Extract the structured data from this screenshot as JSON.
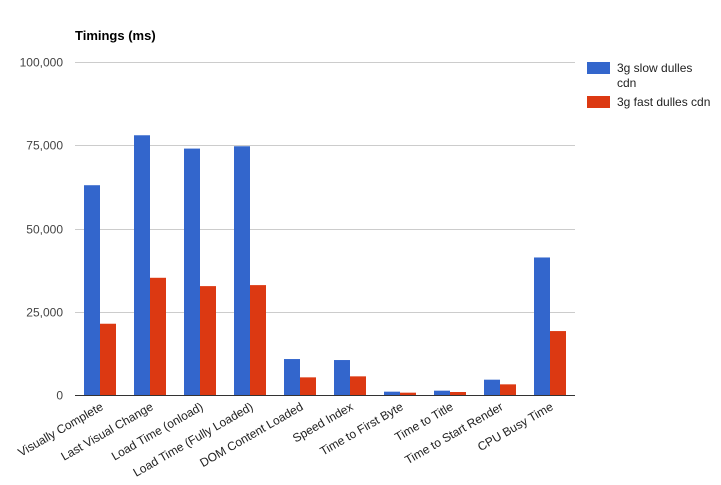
{
  "chart_data": {
    "type": "bar",
    "title": "Timings (ms)",
    "xlabel": "",
    "ylabel": "",
    "ylim": [
      0,
      100000
    ],
    "yticks": [
      0,
      25000,
      50000,
      75000,
      100000
    ],
    "ytick_labels": [
      "0",
      "25,000",
      "50,000",
      "75,000",
      "100,000"
    ],
    "grid": true,
    "legend_position": "right",
    "categories": [
      "Visually Complete",
      "Last Visual Change",
      "Load Time (onload)",
      "Load Time (Fully Loaded)",
      "DOM Content Loaded",
      "Speed Index",
      "Time to First Byte",
      "Time to Title",
      "Time to Start Render",
      "CPU Busy Time"
    ],
    "series": [
      {
        "name": "3g slow dulles cdn",
        "legend_lines": [
          "3g slow dulles",
          "cdn"
        ],
        "color": "#3366cc",
        "values": [
          63000,
          78000,
          74000,
          74700,
          10800,
          10500,
          1000,
          1300,
          4600,
          41300
        ]
      },
      {
        "name": "3g fast dulles cdn",
        "legend_lines": [
          "3g fast dulles cdn"
        ],
        "color": "#dc3912",
        "values": [
          21400,
          35200,
          32700,
          33000,
          5300,
          5600,
          700,
          900,
          3200,
          19200
        ]
      }
    ]
  }
}
